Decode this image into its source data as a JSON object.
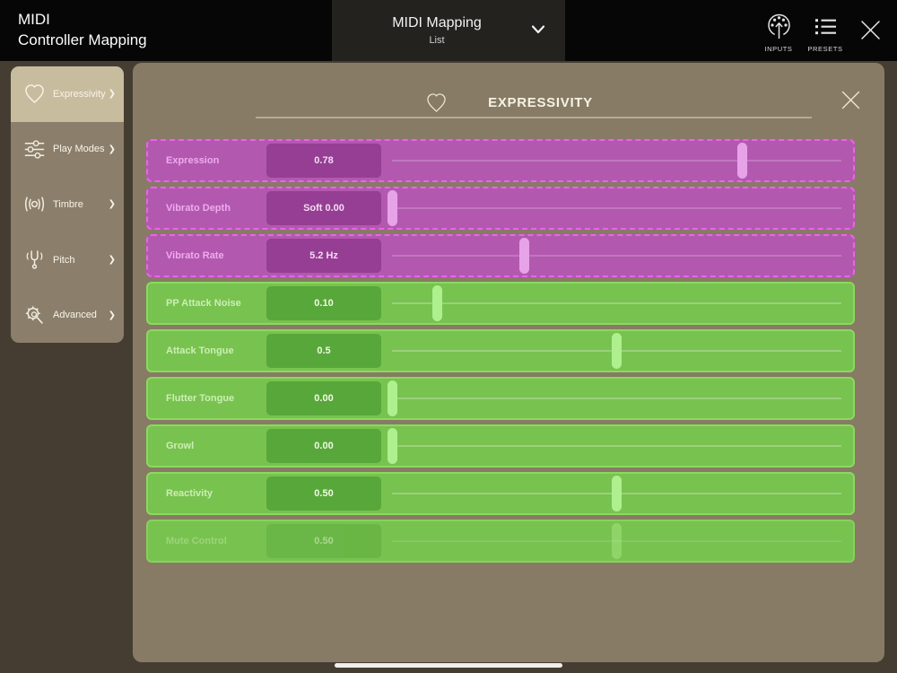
{
  "topbar": {
    "title_line1": "MIDI",
    "title_line2": "Controller Mapping",
    "dropdown_title": "MIDI Mapping",
    "dropdown_subtitle": "List",
    "inputs_label": "INPUTS",
    "presets_label": "PRESETS"
  },
  "sidebar": {
    "items": [
      {
        "label": "Expressivity",
        "icon": "heart-icon",
        "selected": true
      },
      {
        "label": "Play Modes",
        "icon": "mixer-sliders-icon",
        "selected": false
      },
      {
        "label": "Timbre",
        "icon": "timbre-resonance-icon",
        "selected": false
      },
      {
        "label": "Pitch",
        "icon": "tuning-fork-icon",
        "selected": false
      },
      {
        "label": "Advanced",
        "icon": "gear-magnifier-icon",
        "selected": false
      }
    ]
  },
  "panel": {
    "title": "EXPRESSIVITY",
    "sliders": [
      {
        "label": "Expression",
        "value": "0.78",
        "fraction": 0.78,
        "color": "purple",
        "disabled": false
      },
      {
        "label": "Vibrato Depth",
        "value": "Soft 0.00",
        "fraction": 0.0,
        "color": "purple",
        "disabled": false
      },
      {
        "label": "Vibrato Rate",
        "value": "5.2 Hz",
        "fraction": 0.295,
        "color": "purple",
        "disabled": false
      },
      {
        "label": "PP Attack Noise",
        "value": "0.10",
        "fraction": 0.1,
        "color": "green",
        "disabled": false
      },
      {
        "label": "Attack Tongue",
        "value": "0.5",
        "fraction": 0.5,
        "color": "green",
        "disabled": false
      },
      {
        "label": "Flutter Tongue",
        "value": "0.00",
        "fraction": 0.0,
        "color": "green",
        "disabled": false
      },
      {
        "label": "Growl",
        "value": "0.00",
        "fraction": 0.0,
        "color": "green",
        "disabled": false
      },
      {
        "label": "Reactivity",
        "value": "0.50",
        "fraction": 0.5,
        "color": "green",
        "disabled": false
      },
      {
        "label": "Mute Control",
        "value": "0.50",
        "fraction": 0.5,
        "color": "green",
        "disabled": true
      }
    ]
  },
  "colors": {
    "purple_row": "#b259af",
    "purple_border": "#f060f2",
    "purple_box": "#953e93",
    "purple_label": "#efabed",
    "purple_handle": "#e7a3e8",
    "green_row": "#78c24f",
    "green_border": "#8bd95f",
    "green_box": "#58a73a",
    "green_label": "#cceeb5",
    "green_handle": "#aeef8e"
  }
}
